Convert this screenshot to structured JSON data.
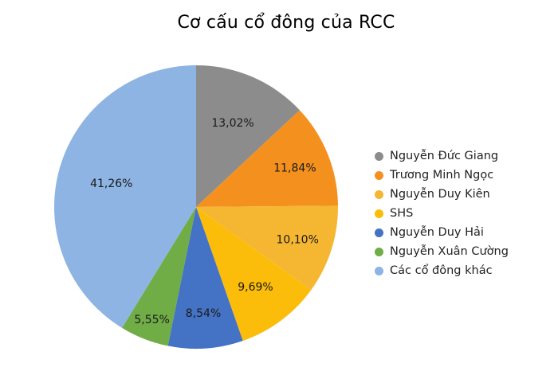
{
  "chart_data": {
    "type": "pie",
    "title": "Cơ cấu cổ đông của RCC",
    "categories": [
      "Nguyễn Đức Giang",
      "Trương Minh Ngọc",
      "Nguyễn Duy Kiên",
      "SHS",
      "Nguyễn Duy Hải",
      "Nguyễn Xuân Cường",
      "Các cổ đông khác"
    ],
    "values": [
      13.02,
      11.84,
      10.1,
      9.69,
      8.54,
      5.55,
      41.26
    ],
    "labels": [
      "13,02%",
      "11,84%",
      "10,10%",
      "9,69%",
      "8,54%",
      "5,55%",
      "41,26%"
    ],
    "colors": [
      "#8c8c8c",
      "#f4911e",
      "#f5b731",
      "#fbbd0a",
      "#4472c4",
      "#70ad47",
      "#8db4e2"
    ],
    "legend_position": "right",
    "start_angle_deg": 0,
    "direction": "clockwise"
  },
  "title": "Cơ cấu cổ đông của RCC",
  "legend": [
    {
      "label": "Nguyễn Đức Giang",
      "color": "#8c8c8c"
    },
    {
      "label": "Trương Minh Ngọc",
      "color": "#f4911e"
    },
    {
      "label": "Nguyễn Duy Kiên",
      "color": "#f5b731"
    },
    {
      "label": "SHS",
      "color": "#fbbd0a"
    },
    {
      "label": "Nguyễn Duy Hải",
      "color": "#4472c4"
    },
    {
      "label": "Nguyễn Xuân Cường",
      "color": "#70ad47"
    },
    {
      "label": "Các cổ đông khác",
      "color": "#8db4e2"
    }
  ]
}
